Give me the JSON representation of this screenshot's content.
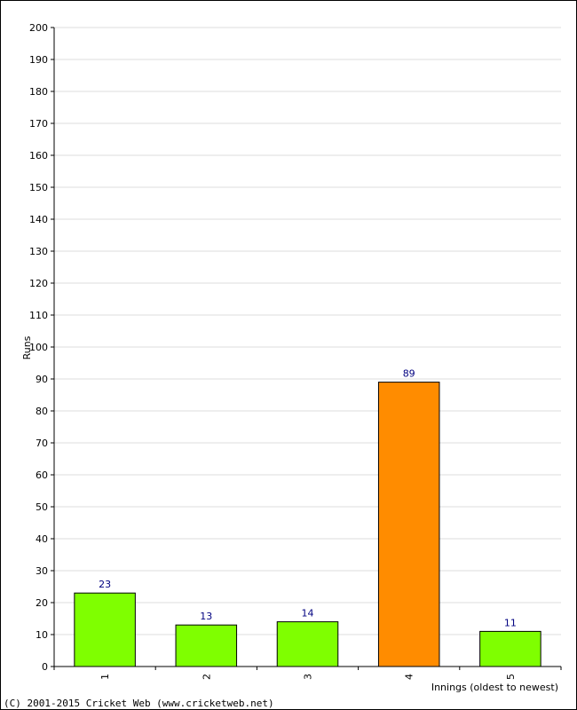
{
  "chart_data": {
    "type": "bar",
    "categories": [
      "1",
      "2",
      "3",
      "4",
      "5"
    ],
    "values": [
      23,
      13,
      14,
      89,
      11
    ],
    "colors": [
      "#7fff00",
      "#7fff00",
      "#7fff00",
      "#ff8c00",
      "#7fff00"
    ],
    "xlabel": "Innings (oldest to newest)",
    "ylabel": "Runs",
    "ylim": [
      0,
      200
    ],
    "ytick_step": 10,
    "grid": true
  },
  "footer": {
    "copyright": "(C) 2001-2015 Cricket Web (www.cricketweb.net)"
  }
}
